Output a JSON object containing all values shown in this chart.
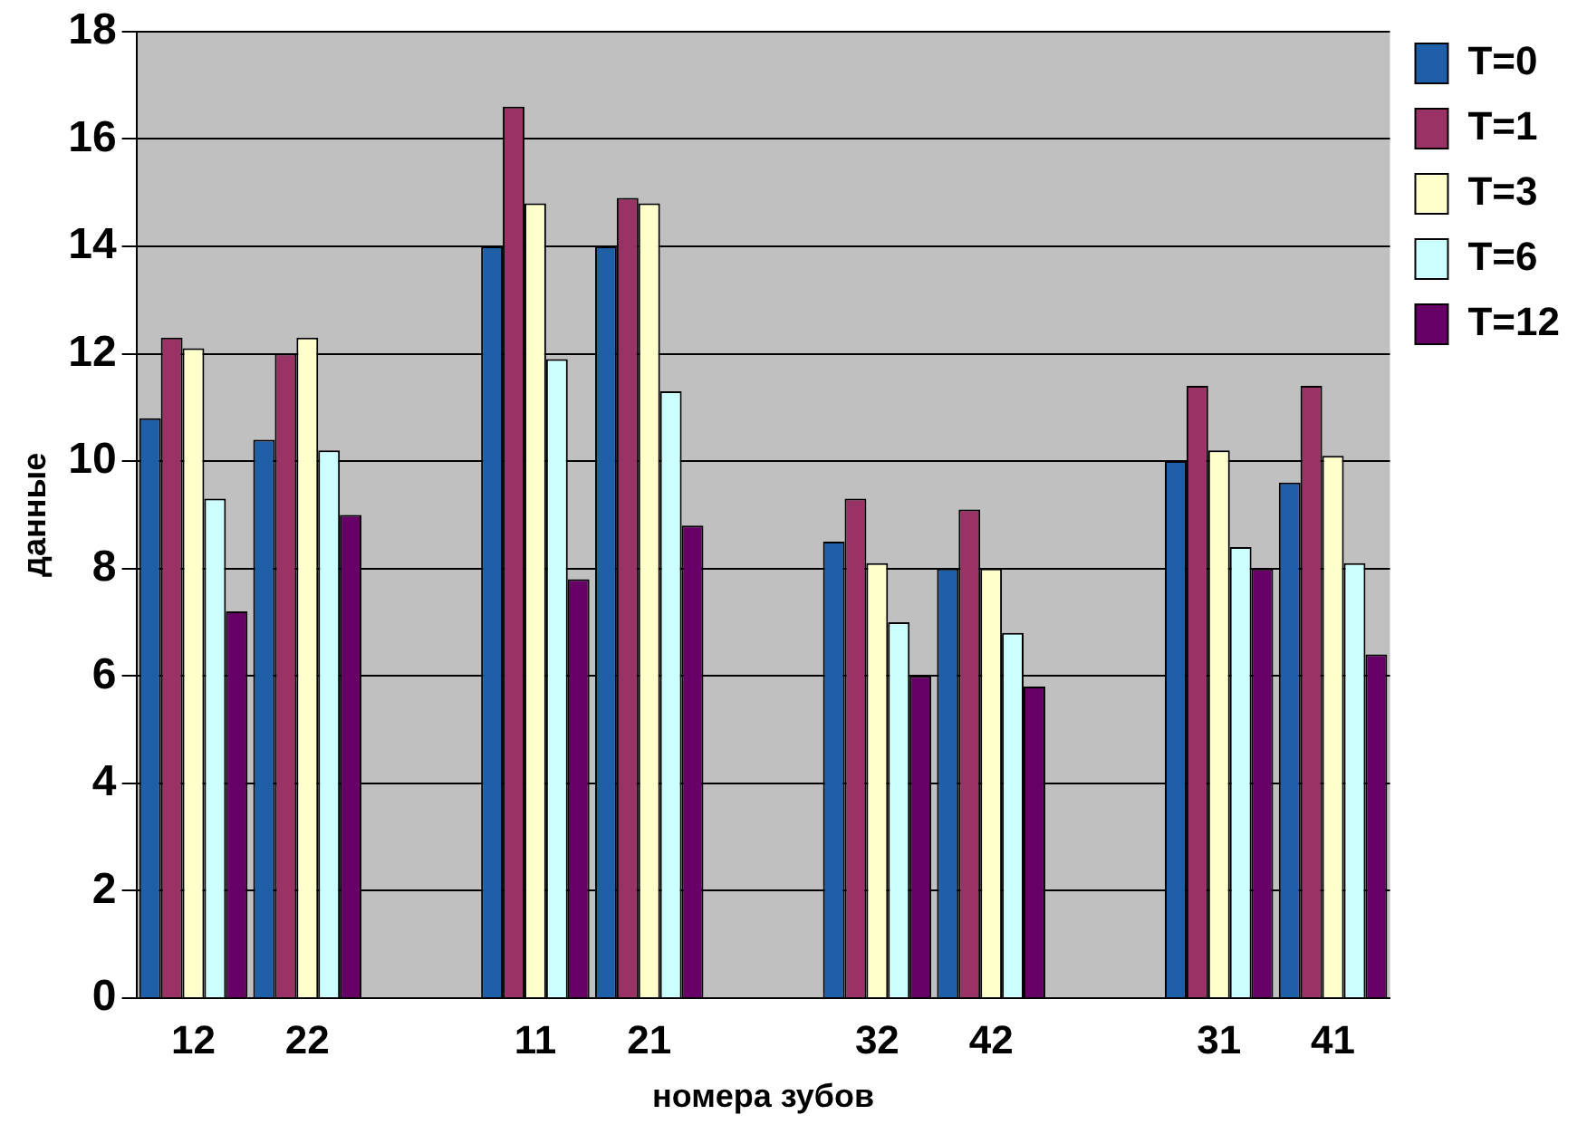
{
  "chart_data": {
    "type": "bar",
    "xlabel": "номера зубов",
    "ylabel": "данные",
    "categories": [
      "12",
      "22",
      null,
      "11",
      "21",
      null,
      "32",
      "42",
      null,
      "31",
      "41"
    ],
    "series": [
      {
        "name": "T=0",
        "color": "#1f5fa8",
        "values": [
          10.8,
          10.4,
          null,
          14.0,
          14.0,
          null,
          8.5,
          8.0,
          null,
          10.0,
          9.6
        ]
      },
      {
        "name": "T=1",
        "color": "#993366",
        "values": [
          12.3,
          12.0,
          null,
          16.6,
          14.9,
          null,
          9.3,
          9.1,
          null,
          11.4,
          11.4
        ]
      },
      {
        "name": "T=3",
        "color": "#ffffcc",
        "values": [
          12.1,
          12.3,
          null,
          14.8,
          14.8,
          null,
          8.1,
          8.0,
          null,
          10.2,
          10.1
        ]
      },
      {
        "name": "T=6",
        "color": "#ccffff",
        "values": [
          9.3,
          10.2,
          null,
          11.9,
          11.3,
          null,
          7.0,
          6.8,
          null,
          8.4,
          8.1
        ]
      },
      {
        "name": "T=12",
        "color": "#660066",
        "values": [
          7.2,
          9.0,
          null,
          7.8,
          8.8,
          null,
          6.0,
          5.8,
          null,
          8.0,
          6.4
        ]
      }
    ],
    "ylim": [
      0,
      18
    ],
    "yticks": [
      0,
      2,
      4,
      6,
      8,
      10,
      12,
      14,
      16,
      18
    ],
    "grid": "y",
    "legend": "top right"
  }
}
